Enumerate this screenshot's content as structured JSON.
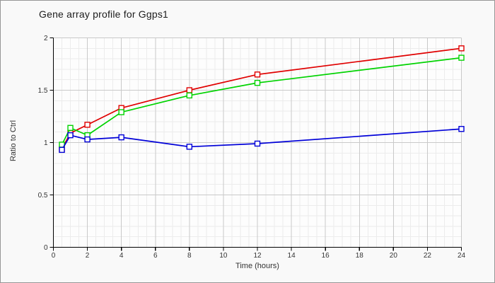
{
  "page": {
    "window_title": "Gene array profile for Ggps1"
  },
  "chart_data": {
    "type": "line",
    "title": "Gene array profile for Ggps1",
    "xlabel": "Time (hours)",
    "ylabel": "Ratio to Ctrl",
    "x": [
      0.5,
      1,
      2,
      4,
      8,
      12,
      24
    ],
    "series": [
      {
        "name": "red-series",
        "color": "#e00000",
        "values": [
          0.94,
          1.09,
          1.17,
          1.33,
          1.5,
          1.65,
          1.9
        ]
      },
      {
        "name": "green-series",
        "color": "#00d300",
        "values": [
          0.98,
          1.14,
          1.07,
          1.29,
          1.45,
          1.57,
          1.81
        ]
      },
      {
        "name": "blue-series",
        "color": "#0000d8",
        "values": [
          0.93,
          1.07,
          1.03,
          1.05,
          0.96,
          0.99,
          1.13
        ]
      }
    ],
    "xlim": [
      0,
      24
    ],
    "ylim": [
      0,
      2
    ],
    "x_ticks": [
      0,
      2,
      4,
      6,
      8,
      10,
      12,
      14,
      16,
      18,
      20,
      22,
      24
    ],
    "y_ticks": [
      0,
      0.5,
      1,
      1.5,
      2
    ],
    "y_tick_labels": [
      "0",
      "0.5",
      "1",
      "1.5",
      "2"
    ],
    "x_minor_step": 0.5,
    "y_minor_step": 0.1,
    "grid": "minor+major",
    "legend": "none",
    "marker": "open-square"
  },
  "colors": {
    "plot_background": "#fdfdfd",
    "page_background": "#f9f9f9",
    "grid_minor": "#ececec",
    "grid_major": "#c9c9c9",
    "axis": "#000000",
    "tick_text": "#333333",
    "marker_fill": "#ffffff",
    "border": "#979797"
  }
}
